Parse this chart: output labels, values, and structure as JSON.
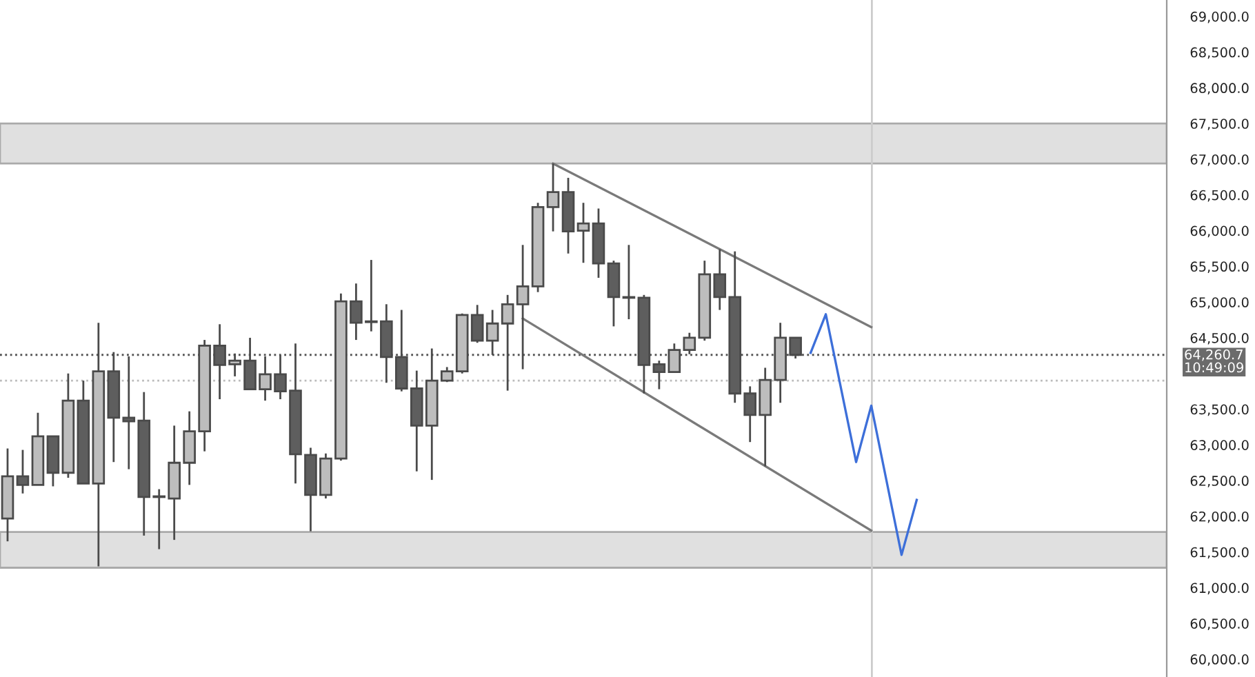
{
  "chart_data": {
    "type": "candlestick",
    "categories": [
      null,
      null,
      null,
      null,
      null,
      null,
      null,
      null,
      null,
      null,
      null,
      null,
      null,
      null,
      null,
      null,
      null,
      null,
      null,
      null,
      null,
      null,
      null,
      null,
      null,
      null,
      null,
      null,
      null,
      null,
      null,
      null,
      null,
      null,
      null,
      null,
      null,
      null,
      null,
      null,
      null,
      null,
      null,
      null,
      null,
      null,
      null,
      null,
      null,
      null,
      null,
      null,
      null,
      null,
      null,
      null,
      null,
      null,
      null,
      null,
      null,
      null,
      null,
      null,
      null,
      null,
      null,
      null,
      null,
      null,
      null,
      null,
      null,
      null,
      null,
      null,
      null
    ],
    "ohlc": [
      [
        61970,
        62950,
        61650,
        62560
      ],
      [
        62560,
        62930,
        62320,
        62440
      ],
      [
        62440,
        63450,
        62440,
        63120
      ],
      [
        63120,
        63120,
        62420,
        62610
      ],
      [
        62610,
        64000,
        62540,
        63620
      ],
      [
        63620,
        63900,
        62460,
        62460
      ],
      [
        62460,
        64710,
        61300,
        64030
      ],
      [
        64030,
        64300,
        62760,
        63380
      ],
      [
        63380,
        64240,
        62660,
        63330
      ],
      [
        63340,
        63740,
        61730,
        62270
      ],
      [
        62280,
        62380,
        61540,
        62270
      ],
      [
        62250,
        63270,
        61670,
        62750
      ],
      [
        62750,
        63470,
        62440,
        63190
      ],
      [
        63190,
        64470,
        62910,
        64390
      ],
      [
        64390,
        64690,
        63640,
        64120
      ],
      [
        64130,
        64280,
        63960,
        64180
      ],
      [
        64180,
        64500,
        63780,
        63780
      ],
      [
        63780,
        64240,
        63620,
        63990
      ],
      [
        63990,
        64260,
        63640,
        63750
      ],
      [
        63760,
        64420,
        62460,
        62870
      ],
      [
        62860,
        62960,
        61790,
        62300
      ],
      [
        62300,
        62880,
        62250,
        62810
      ],
      [
        62810,
        65120,
        62780,
        65010
      ],
      [
        65010,
        65260,
        64470,
        64710
      ],
      [
        64730,
        65590,
        64590,
        64720
      ],
      [
        64730,
        64970,
        63870,
        64230
      ],
      [
        64230,
        64890,
        63750,
        63790
      ],
      [
        63790,
        64040,
        62630,
        63270
      ],
      [
        63270,
        64350,
        62510,
        63900
      ],
      [
        63900,
        64090,
        63880,
        64030
      ],
      [
        64030,
        64840,
        64000,
        64820
      ],
      [
        64820,
        64960,
        64430,
        64460
      ],
      [
        64460,
        64890,
        64260,
        64700
      ],
      [
        64700,
        65100,
        63760,
        64970
      ],
      [
        64970,
        65800,
        64060,
        65220
      ],
      [
        65220,
        66390,
        65140,
        66330
      ],
      [
        66330,
        66940,
        65990,
        66540
      ],
      [
        66540,
        66740,
        65680,
        65990
      ],
      [
        66000,
        66390,
        65550,
        66100
      ],
      [
        66100,
        66310,
        65340,
        65540
      ],
      [
        65540,
        65580,
        64660,
        65070
      ],
      [
        65070,
        65800,
        64760,
        65060
      ],
      [
        65060,
        65100,
        63720,
        64120
      ],
      [
        64130,
        64180,
        63780,
        64020
      ],
      [
        64020,
        64420,
        64020,
        64330
      ],
      [
        64330,
        64570,
        64270,
        64500
      ],
      [
        64500,
        65580,
        64460,
        65390
      ],
      [
        65390,
        65740,
        64890,
        65070
      ],
      [
        65070,
        65710,
        63590,
        63720
      ],
      [
        63720,
        63820,
        63040,
        63420
      ],
      [
        63420,
        64080,
        62700,
        63910
      ],
      [
        63910,
        64710,
        63590,
        64500
      ],
      [
        64500,
        64500,
        64210,
        64260.7
      ],
      null,
      null,
      null,
      null,
      null,
      null,
      null,
      null,
      null,
      null,
      null,
      null,
      null,
      null,
      null,
      null,
      null,
      null,
      null,
      null,
      null,
      null,
      null,
      null
    ],
    "colors": [
      "#bdbdbd",
      "#5e5e5e",
      "#bdbdbd",
      "#5e5e5e",
      "#bdbdbd",
      "#5e5e5e",
      "#bdbdbd",
      "#5e5e5e",
      "#5e5e5e",
      "#5e5e5e",
      "#5e5e5e",
      "#bdbdbd",
      "#bdbdbd",
      "#bdbdbd",
      "#5e5e5e",
      "#bdbdbd",
      "#5e5e5e",
      "#bdbdbd",
      "#5e5e5e",
      "#5e5e5e",
      "#5e5e5e",
      "#bdbdbd",
      "#bdbdbd",
      "#5e5e5e",
      "#5e5e5e",
      "#5e5e5e",
      "#5e5e5e",
      "#5e5e5e",
      "#bdbdbd",
      "#bdbdbd",
      "#bdbdbd",
      "#5e5e5e",
      "#bdbdbd",
      "#bdbdbd",
      "#bdbdbd",
      "#bdbdbd",
      "#bdbdbd",
      "#5e5e5e",
      "#bdbdbd",
      "#5e5e5e",
      "#5e5e5e",
      "#5e5e5e",
      "#5e5e5e",
      "#5e5e5e",
      "#bdbdbd",
      "#bdbdbd",
      "#bdbdbd",
      "#5e5e5e",
      "#5e5e5e",
      "#5e5e5e",
      "#bdbdbd",
      "#bdbdbd",
      "#5e5e5e",
      null,
      null,
      null,
      null,
      null,
      null,
      null,
      null,
      null,
      null,
      null,
      null,
      null,
      null,
      null,
      null,
      null,
      null,
      null,
      null,
      null,
      null,
      null,
      null
    ],
    "series": [
      {
        "type": "line",
        "color": "#7a7a7a",
        "values": [
          null,
          null,
          null,
          null,
          null,
          null,
          null,
          null,
          null,
          null,
          null,
          null,
          null,
          null,
          null,
          null,
          null,
          null,
          null,
          null,
          null,
          null,
          null,
          null,
          null,
          null,
          null,
          null,
          null,
          null,
          null,
          null,
          null,
          null,
          null,
          null,
          66940,
          null,
          null,
          null,
          null,
          null,
          null,
          null,
          null,
          null,
          null,
          null,
          null,
          null,
          null,
          null,
          null,
          null,
          null,
          null,
          null,
          64650,
          null,
          null,
          null,
          null,
          null,
          null,
          null,
          null,
          null,
          null,
          null,
          null,
          null,
          null,
          null,
          null,
          null,
          null,
          null
        ]
      },
      {
        "type": "line",
        "color": "#7a7a7a",
        "values": [
          null,
          null,
          null,
          null,
          null,
          null,
          null,
          null,
          null,
          null,
          null,
          null,
          null,
          null,
          null,
          null,
          null,
          null,
          null,
          null,
          null,
          null,
          null,
          null,
          null,
          null,
          null,
          null,
          null,
          null,
          null,
          null,
          null,
          null,
          64770,
          null,
          null,
          null,
          null,
          null,
          null,
          null,
          null,
          null,
          null,
          null,
          null,
          null,
          null,
          null,
          null,
          null,
          null,
          null,
          null,
          null,
          null,
          61800,
          null,
          null,
          null,
          null,
          null,
          null,
          null,
          null,
          null,
          null,
          null,
          null,
          null,
          null,
          null,
          null,
          null,
          null,
          null
        ]
      },
      {
        "type": "line",
        "color": "#3d6fd9",
        "values": [
          null,
          null,
          null,
          null,
          null,
          null,
          null,
          null,
          null,
          null,
          null,
          null,
          null,
          null,
          null,
          null,
          null,
          null,
          null,
          null,
          null,
          null,
          null,
          null,
          null,
          null,
          null,
          null,
          null,
          null,
          null,
          null,
          null,
          null,
          null,
          null,
          null,
          null,
          null,
          null,
          null,
          null,
          null,
          null,
          null,
          null,
          null,
          null,
          null,
          null,
          null,
          null,
          null,
          64290,
          64830,
          null,
          62760,
          63550,
          null,
          61460,
          62230,
          null,
          null,
          null,
          null,
          null,
          null,
          null,
          null,
          null,
          null,
          null,
          null,
          null,
          null,
          null,
          null
        ]
      }
    ],
    "ylim": [
      59750,
      69230
    ],
    "yticks": [
      {
        "value": 60000,
        "label": "60,000.0"
      },
      {
        "value": 60500,
        "label": "60,500.0"
      },
      {
        "value": 61000,
        "label": "61,000.0"
      },
      {
        "value": 61500,
        "label": "61,500.0"
      },
      {
        "value": 62000,
        "label": "62,000.0"
      },
      {
        "value": 62500,
        "label": "62,500.0"
      },
      {
        "value": 63000,
        "label": "63,000.0"
      },
      {
        "value": 63500,
        "label": "63,500.0"
      },
      {
        "value": 64500,
        "label": "64,500.0"
      },
      {
        "value": 65000,
        "label": "65,000.0"
      },
      {
        "value": 65500,
        "label": "65,500.0"
      },
      {
        "value": 66000,
        "label": "66,000.0"
      },
      {
        "value": 66500,
        "label": "66,500.0"
      },
      {
        "value": 67000,
        "label": "67,000.0"
      },
      {
        "value": 67500,
        "label": "67,500.0"
      },
      {
        "value": 68000,
        "label": "68,000.0"
      },
      {
        "value": 68500,
        "label": "68,500.0"
      },
      {
        "value": 69000,
        "label": "69,000.0"
      }
    ],
    "tick_labels": "y",
    "grid": false,
    "bands": [
      {
        "axis": "y",
        "from": 66940,
        "to": 67500,
        "color": "#e0e0e0"
      },
      {
        "axis": "y",
        "from": 61280,
        "to": 61780,
        "color": "#e0e0e0"
      }
    ],
    "ref_lines": [
      {
        "axis": "y",
        "value": 64260.7,
        "label": "64,260.7\n10:49:09",
        "color": "#555555",
        "line_style": "dotted"
      },
      {
        "axis": "y",
        "value": 63900,
        "color": "#bbbbbb",
        "line_style": "dotted"
      }
    ]
  }
}
